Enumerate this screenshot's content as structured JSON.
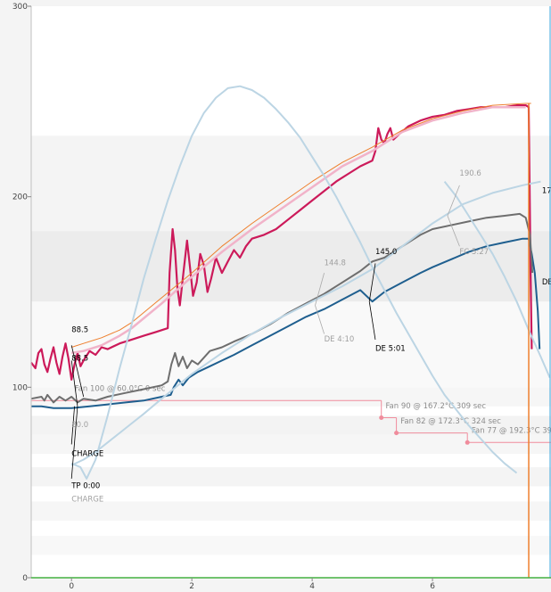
{
  "chart_data": {
    "type": "line",
    "title": "",
    "xlabel": "",
    "ylabel": "",
    "xlim": [
      -0.67,
      7.97
    ],
    "ylim": [
      0,
      300
    ],
    "x_ticks": [
      0,
      2,
      4,
      6
    ],
    "y_ticks": [
      0,
      100,
      200,
      300
    ],
    "grid": "horizontal bands",
    "colors": {
      "et_red": "#cc1a5a",
      "et_light": "#f1b3c9",
      "orange": "#ee7f2d",
      "bt_blue": "#1f5f8f",
      "gray": "#6e6e6e",
      "light_blue": "#bcd5e4",
      "fan": "#f08c9c",
      "bottom": "#44b040"
    },
    "series": [
      {
        "key": "et_red",
        "values": [
          [
            -0.67,
            113
          ],
          [
            -0.6,
            110
          ],
          [
            -0.55,
            118
          ],
          [
            -0.5,
            120
          ],
          [
            -0.45,
            112
          ],
          [
            -0.4,
            108
          ],
          [
            -0.35,
            115
          ],
          [
            -0.3,
            121
          ],
          [
            -0.25,
            113
          ],
          [
            -0.2,
            107
          ],
          [
            -0.15,
            116
          ],
          [
            -0.1,
            123
          ],
          [
            -0.05,
            115
          ],
          [
            0.0,
            104
          ],
          [
            0.05,
            112
          ],
          [
            0.1,
            118
          ],
          [
            0.15,
            111
          ],
          [
            0.2,
            114
          ],
          [
            0.3,
            119
          ],
          [
            0.4,
            117
          ],
          [
            0.5,
            121
          ],
          [
            0.6,
            120
          ],
          [
            0.8,
            123
          ],
          [
            1.0,
            125
          ],
          [
            1.2,
            127
          ],
          [
            1.4,
            129
          ],
          [
            1.6,
            131
          ],
          [
            1.63,
            160
          ],
          [
            1.68,
            183
          ],
          [
            1.72,
            172
          ],
          [
            1.76,
            152
          ],
          [
            1.8,
            143
          ],
          [
            1.86,
            160
          ],
          [
            1.92,
            177
          ],
          [
            1.97,
            163
          ],
          [
            2.02,
            148
          ],
          [
            2.08,
            155
          ],
          [
            2.14,
            170
          ],
          [
            2.2,
            164
          ],
          [
            2.26,
            150
          ],
          [
            2.32,
            157
          ],
          [
            2.4,
            168
          ],
          [
            2.5,
            160
          ],
          [
            2.6,
            166
          ],
          [
            2.7,
            172
          ],
          [
            2.8,
            168
          ],
          [
            2.9,
            174
          ],
          [
            3.0,
            178
          ],
          [
            3.2,
            180
          ],
          [
            3.4,
            183
          ],
          [
            3.6,
            188
          ],
          [
            3.8,
            193
          ],
          [
            4.0,
            198
          ],
          [
            4.2,
            203
          ],
          [
            4.4,
            208
          ],
          [
            4.6,
            212
          ],
          [
            4.8,
            216
          ],
          [
            5.0,
            219
          ],
          [
            5.05,
            224
          ],
          [
            5.1,
            236
          ],
          [
            5.15,
            230
          ],
          [
            5.2,
            228
          ],
          [
            5.25,
            233
          ],
          [
            5.3,
            236
          ],
          [
            5.35,
            230
          ],
          [
            5.45,
            233
          ],
          [
            5.6,
            237
          ],
          [
            5.8,
            240
          ],
          [
            6.0,
            242
          ],
          [
            6.2,
            243
          ],
          [
            6.4,
            245
          ],
          [
            6.6,
            246
          ],
          [
            6.8,
            247
          ],
          [
            7.0,
            247
          ],
          [
            7.2,
            247
          ],
          [
            7.4,
            248
          ],
          [
            7.55,
            248
          ],
          [
            7.6,
            247
          ],
          [
            7.63,
            160
          ],
          [
            7.65,
            120
          ]
        ]
      },
      {
        "key": "et_light",
        "values": [
          [
            0.0,
            118
          ],
          [
            0.2,
            119
          ],
          [
            0.5,
            122
          ],
          [
            0.8,
            127
          ],
          [
            1.0,
            131
          ],
          [
            1.5,
            144
          ],
          [
            2.0,
            158
          ],
          [
            2.5,
            171
          ],
          [
            3.0,
            183
          ],
          [
            3.5,
            194
          ],
          [
            4.0,
            205
          ],
          [
            4.5,
            216
          ],
          [
            5.0,
            224
          ],
          [
            5.5,
            234
          ],
          [
            6.0,
            240
          ],
          [
            6.5,
            244
          ],
          [
            7.0,
            247
          ],
          [
            7.55,
            247
          ]
        ]
      },
      {
        "key": "orange",
        "values": [
          [
            0.0,
            121
          ],
          [
            0.2,
            123
          ],
          [
            0.5,
            126
          ],
          [
            0.8,
            130
          ],
          [
            1.0,
            134
          ],
          [
            1.5,
            147
          ],
          [
            2.0,
            160
          ],
          [
            2.5,
            174
          ],
          [
            3.0,
            186
          ],
          [
            3.5,
            197
          ],
          [
            4.0,
            208
          ],
          [
            4.5,
            218
          ],
          [
            5.0,
            226
          ],
          [
            5.5,
            235
          ],
          [
            6.0,
            241
          ],
          [
            6.5,
            245
          ],
          [
            7.0,
            248
          ],
          [
            7.55,
            249
          ],
          [
            7.64,
            249
          ]
        ]
      },
      {
        "key": "bt_blue",
        "values": [
          [
            -0.67,
            90
          ],
          [
            -0.5,
            90
          ],
          [
            -0.3,
            89
          ],
          [
            0.0,
            89
          ],
          [
            0.3,
            90
          ],
          [
            0.6,
            91
          ],
          [
            0.9,
            92
          ],
          [
            1.2,
            93
          ],
          [
            1.5,
            95
          ],
          [
            1.65,
            96
          ],
          [
            1.7,
            100
          ],
          [
            1.78,
            104
          ],
          [
            1.85,
            101
          ],
          [
            1.95,
            105
          ],
          [
            2.1,
            108
          ],
          [
            2.3,
            111
          ],
          [
            2.5,
            114
          ],
          [
            2.7,
            117
          ],
          [
            3.0,
            122
          ],
          [
            3.3,
            127
          ],
          [
            3.6,
            132
          ],
          [
            3.9,
            137
          ],
          [
            4.2,
            141
          ],
          [
            4.5,
            146
          ],
          [
            4.8,
            151
          ],
          [
            5.0,
            145
          ],
          [
            5.2,
            150
          ],
          [
            5.5,
            155
          ],
          [
            5.8,
            160
          ],
          [
            6.0,
            163
          ],
          [
            6.3,
            167
          ],
          [
            6.6,
            171
          ],
          [
            6.9,
            174
          ],
          [
            7.2,
            176
          ],
          [
            7.5,
            178
          ],
          [
            7.6,
            178
          ],
          [
            7.65,
            170
          ],
          [
            7.7,
            160
          ],
          [
            7.75,
            140
          ],
          [
            7.78,
            120
          ]
        ]
      },
      {
        "key": "gray",
        "values": [
          [
            -0.67,
            94
          ],
          [
            -0.5,
            95
          ],
          [
            -0.45,
            93
          ],
          [
            -0.4,
            96
          ],
          [
            -0.3,
            92
          ],
          [
            -0.2,
            95
          ],
          [
            -0.1,
            93
          ],
          [
            0.0,
            95
          ],
          [
            0.1,
            92
          ],
          [
            0.2,
            94
          ],
          [
            0.4,
            93
          ],
          [
            0.6,
            95
          ],
          [
            0.9,
            97
          ],
          [
            1.2,
            99
          ],
          [
            1.5,
            101
          ],
          [
            1.6,
            103
          ],
          [
            1.66,
            112
          ],
          [
            1.72,
            118
          ],
          [
            1.78,
            111
          ],
          [
            1.85,
            116
          ],
          [
            1.92,
            110
          ],
          [
            2.0,
            114
          ],
          [
            2.1,
            112
          ],
          [
            2.3,
            119
          ],
          [
            2.5,
            121
          ],
          [
            2.7,
            124
          ],
          [
            3.0,
            128
          ],
          [
            3.3,
            133
          ],
          [
            3.6,
            139
          ],
          [
            3.9,
            144
          ],
          [
            4.2,
            149
          ],
          [
            4.5,
            155
          ],
          [
            4.8,
            161
          ],
          [
            5.0,
            166
          ],
          [
            5.2,
            168
          ],
          [
            5.4,
            172
          ],
          [
            5.6,
            176
          ],
          [
            5.8,
            180
          ],
          [
            6.0,
            183
          ],
          [
            6.3,
            185
          ],
          [
            6.6,
            187
          ],
          [
            6.9,
            189
          ],
          [
            7.2,
            190
          ],
          [
            7.45,
            191
          ],
          [
            7.55,
            189
          ],
          [
            7.62,
            180
          ],
          [
            7.66,
            160
          ]
        ]
      },
      {
        "key": "light_blue",
        "values": [
          [
            0.0,
            60
          ],
          [
            0.15,
            58
          ],
          [
            0.25,
            52
          ],
          [
            0.4,
            62
          ],
          [
            0.6,
            85
          ],
          [
            0.8,
            110
          ],
          [
            1.0,
            133
          ],
          [
            1.2,
            157
          ],
          [
            1.4,
            178
          ],
          [
            1.6,
            198
          ],
          [
            1.8,
            216
          ],
          [
            2.0,
            232
          ],
          [
            2.2,
            244
          ],
          [
            2.4,
            252
          ],
          [
            2.6,
            257
          ],
          [
            2.8,
            258
          ],
          [
            3.0,
            256
          ],
          [
            3.2,
            252
          ],
          [
            3.4,
            246
          ],
          [
            3.6,
            239
          ],
          [
            3.8,
            231
          ],
          [
            4.0,
            221
          ],
          [
            4.2,
            211
          ],
          [
            4.4,
            200
          ],
          [
            4.6,
            188
          ],
          [
            4.8,
            176
          ],
          [
            5.0,
            163
          ],
          [
            5.2,
            151
          ],
          [
            5.4,
            139
          ],
          [
            5.6,
            128
          ],
          [
            5.8,
            117
          ],
          [
            6.0,
            106
          ],
          [
            6.2,
            96
          ],
          [
            6.4,
            88
          ],
          [
            6.6,
            80
          ],
          [
            6.8,
            73
          ],
          [
            7.0,
            66
          ],
          [
            7.2,
            60
          ],
          [
            7.4,
            55
          ]
        ]
      },
      {
        "key": "light_blue",
        "values": [
          [
            0.0,
            59
          ],
          [
            0.2,
            62
          ],
          [
            0.4,
            66
          ],
          [
            0.6,
            71
          ],
          [
            0.8,
            76
          ],
          [
            1.0,
            81
          ],
          [
            1.2,
            86
          ],
          [
            1.5,
            94
          ],
          [
            2.0,
            107
          ],
          [
            2.5,
            118
          ],
          [
            3.0,
            128
          ],
          [
            3.5,
            137
          ],
          [
            4.0,
            145
          ],
          [
            4.5,
            153
          ],
          [
            5.0,
            162
          ],
          [
            5.5,
            174
          ],
          [
            6.0,
            186
          ],
          [
            6.5,
            196
          ],
          [
            7.0,
            202
          ],
          [
            7.5,
            206
          ],
          [
            7.8,
            208
          ]
        ]
      },
      {
        "key": "light_blue",
        "values": [
          [
            6.2,
            208
          ],
          [
            6.4,
            200
          ],
          [
            6.6,
            190
          ],
          [
            6.8,
            180
          ],
          [
            7.0,
            170
          ],
          [
            7.2,
            158
          ],
          [
            7.4,
            145
          ],
          [
            7.6,
            130
          ],
          [
            7.8,
            116
          ],
          [
            7.95,
            105
          ]
        ]
      }
    ],
    "fan_steps": [
      {
        "from_x": -0.67,
        "to_x": 5.15,
        "y": 93,
        "label": "Fan 100 @ 60.0°C 0 sec",
        "label_x": 0.05,
        "label_y": 98
      },
      {
        "from_x": 5.15,
        "to_x": 5.4,
        "y": 84,
        "label": "Fan 90 @ 167.2°C 309 sec",
        "label_x": 5.22,
        "label_y": 89
      },
      {
        "from_x": 5.4,
        "to_x": 6.58,
        "y": 76,
        "label": "Fan 82 @ 172.3°C 324 sec",
        "label_x": 5.47,
        "label_y": 81
      },
      {
        "from_x": 6.58,
        "to_x": 7.97,
        "y": 71,
        "label": "Fan 77 @ 192.3°C 39",
        "label_x": 6.65,
        "label_y": 76
      }
    ],
    "annotations": [
      {
        "text": "88.5",
        "x": 0.0,
        "y": 129,
        "color": "#000000"
      },
      {
        "text": "88.5",
        "x": 0.0,
        "y": 114,
        "color": "#000000"
      },
      {
        "text": "145.0",
        "x": 5.05,
        "y": 170,
        "color": "#000000"
      },
      {
        "text": "190.6",
        "x": 6.45,
        "y": 211,
        "color": "#a0a0a0"
      },
      {
        "text": "144.8",
        "x": 4.2,
        "y": 164,
        "color": "#a0a0a0"
      },
      {
        "text": "DE 4:10",
        "x": 4.2,
        "y": 124,
        "color": "#a0a0a0"
      },
      {
        "text": "FC 5:27",
        "x": 6.45,
        "y": 170,
        "color": "#a0a0a0"
      },
      {
        "text": "DE 5:01",
        "x": 5.05,
        "y": 119,
        "color": "#000000"
      },
      {
        "text": "CHARGE",
        "x": 0.0,
        "y": 64,
        "color": "#000000"
      },
      {
        "text": "TP 0:00",
        "x": 0.0,
        "y": 47,
        "color": "#000000"
      },
      {
        "text": "CHARGE",
        "x": 0.0,
        "y": 40,
        "color": "#a0a0a0"
      },
      {
        "text": "80.0",
        "x": 0.0,
        "y": 79,
        "color": "#a0a0a0"
      },
      {
        "text": "17",
        "x": 7.82,
        "y": 202,
        "color": "#000000"
      },
      {
        "text": "DE",
        "x": 7.82,
        "y": 154,
        "color": "#000000"
      }
    ],
    "markers": [
      {
        "x": 7.6,
        "color": "#ee7f2d"
      }
    ]
  }
}
